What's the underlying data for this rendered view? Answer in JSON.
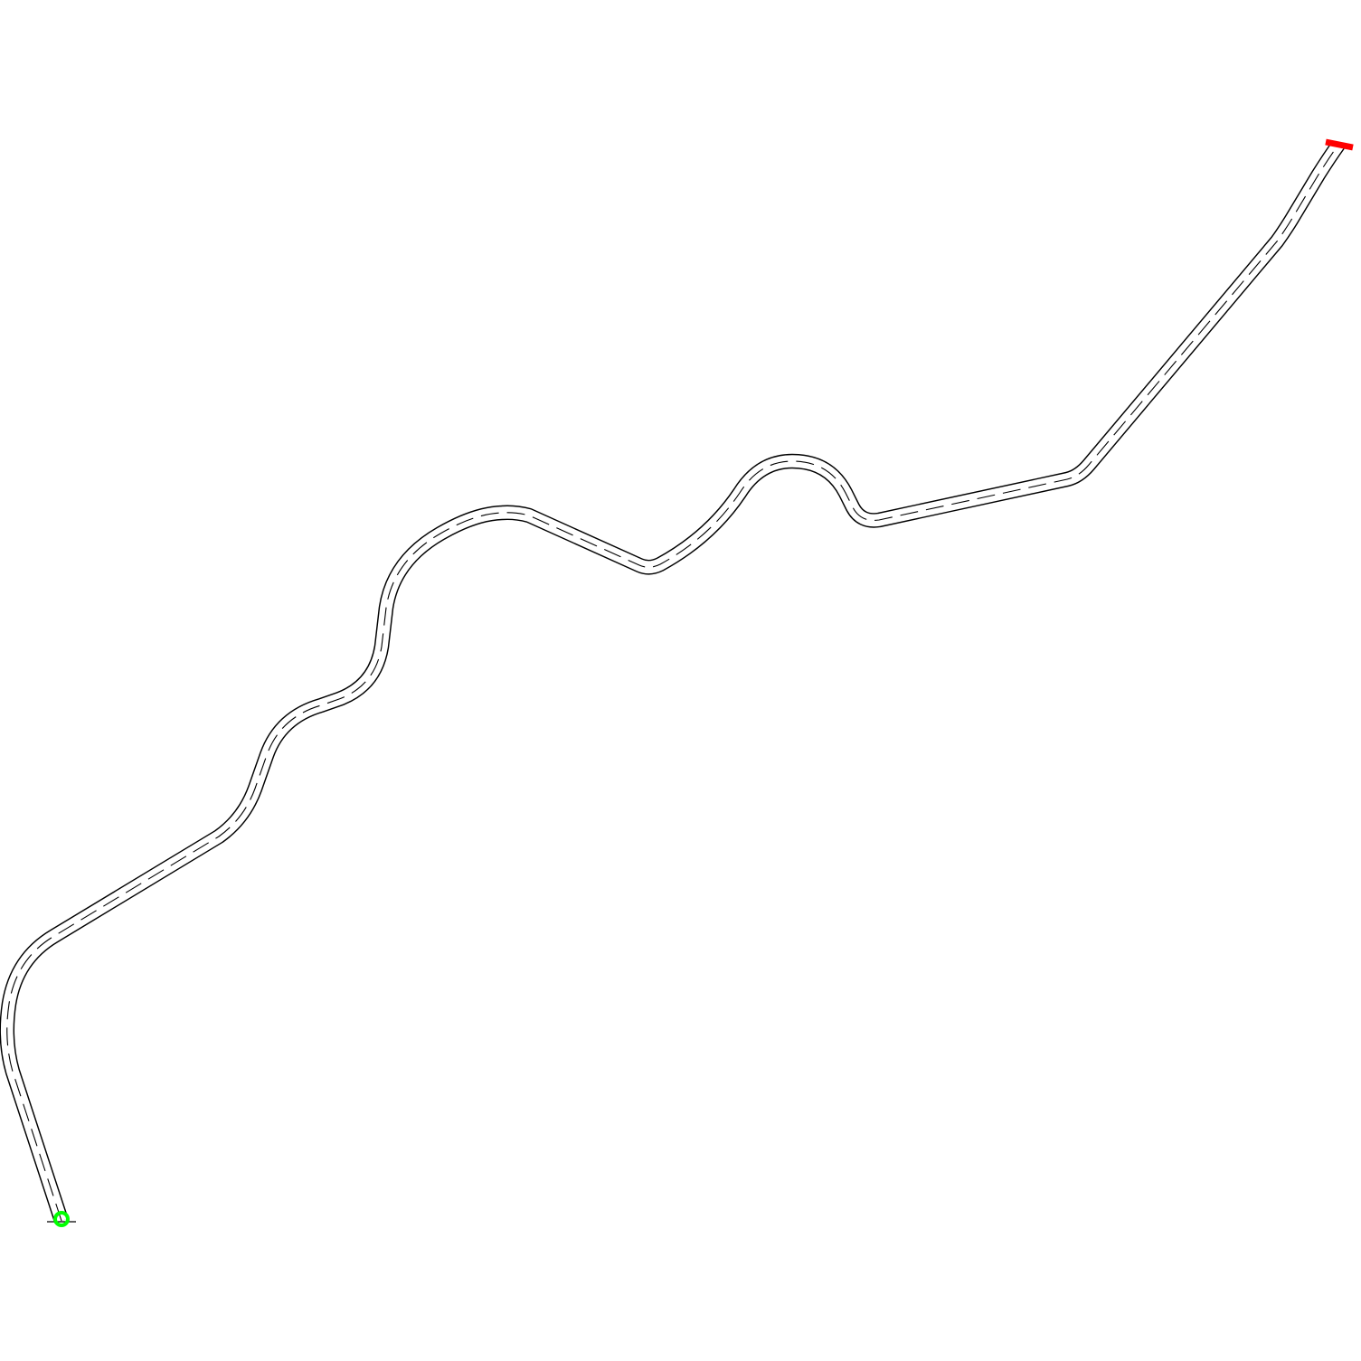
{
  "map": {
    "background_color": "#ffffff",
    "road": {
      "name": "road",
      "edge_color": "#000000",
      "surface_color": "#ffffff",
      "centerline_color": "#000000",
      "centerline_style": "dashed",
      "lanes": 2
    },
    "start_marker": {
      "icon": "start-circle-icon",
      "color": "#00ff00"
    },
    "end_marker": {
      "icon": "finish-line-icon",
      "color": "#ff0000"
    }
  }
}
